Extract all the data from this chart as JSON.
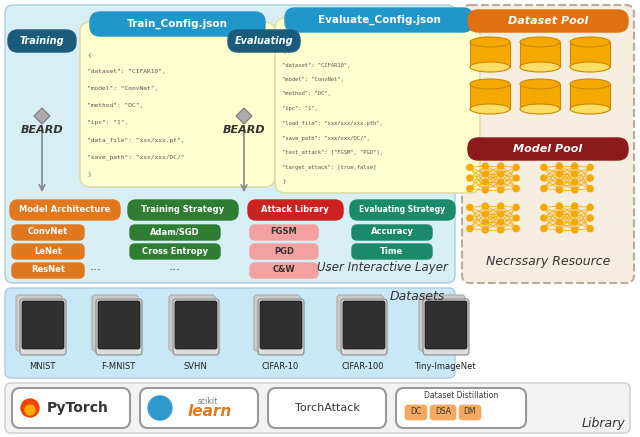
{
  "train_config_text": "Train_Config.json",
  "evaluate_config_text": "Evaluate_Config.json",
  "training_text": "Training",
  "evaluating_text": "Evaluating",
  "beard_text": "BEARD",
  "train_json_lines": [
    "{",
    "\"dataset\": \"CIFAR10\",",
    "\"model\": \"ConvNet\",",
    "\"method\": \"DC\",",
    "\"ipc\": \"1\",",
    "\"data_file\": \"xxx/xxx.pt\",",
    "\"save_path\": \"xxx/xxx/DC/\"",
    "}"
  ],
  "eval_json_lines": [
    "{",
    "\"dataset\": \"CIFAR10\",",
    "\"model\": \"ConvNet\",",
    "\"method\": \"DC\",",
    "\"ipc\": \"1\",",
    "\"load_file\": \"xxx/xxx/xxx.pth\",",
    "\"save_path\": \"xxx/xxx/DC/\",",
    "\"test_attack\": [\"FGSM\", \"PGD\"],",
    "\"target_attack\": [true,false]",
    "}"
  ],
  "header_blue": "#2196C8",
  "dark_blue_badge": "#1a5a7a",
  "orange_color": "#E07820",
  "green_color": "#2E7D32",
  "red_color": "#CC2222",
  "teal_color": "#1A8A6A",
  "dataset_pool_orange": "#E07010",
  "model_pool_red": "#8B1A1A",
  "json_card_bg": "#FFFFD0",
  "top_layer_bg": "#D8EEF5",
  "right_section_bg": "#F5EDE0",
  "datasets_bg": "#C8E8F5",
  "library_bg": "#F2F2F2",
  "fgsm_pink": "#F5A0A0",
  "cylinder_gold": "#F5A800",
  "user_interactive_label": "User Interactive Layer",
  "necessary_resource_label": "Necrssary Resource",
  "datasets_label": "Datasets",
  "library_label": "Library",
  "dataset_names": [
    "MNIST",
    "F-MNIST",
    "SVHN",
    "CIFAR-10",
    "CIFAR-100",
    "Tiny-ImageNet"
  ]
}
